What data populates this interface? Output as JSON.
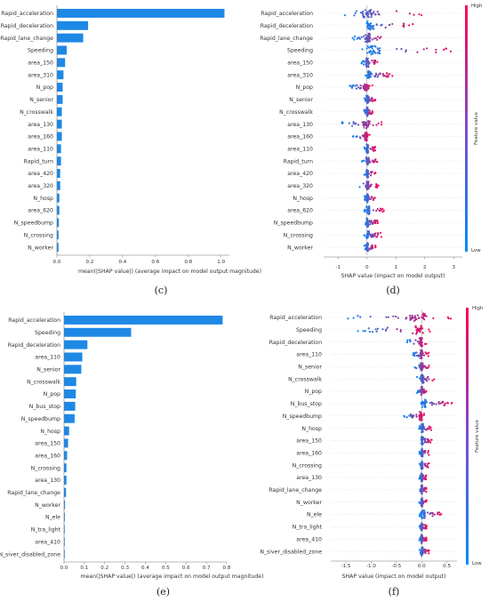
{
  "chart_data": [
    {
      "id": "c",
      "type": "bar",
      "panel_label": "(c)",
      "orientation": "horizontal",
      "categories": [
        "Rapid_acceleration",
        "Rapid_deceleration",
        "Rapid_lane_change",
        "Speeding",
        "area_150",
        "area_310",
        "N_pop",
        "N_senior",
        "N_crosswalk",
        "area_130",
        "area_160",
        "area_110",
        "Rapid_turn",
        "area_420",
        "area_320",
        "N_hosp",
        "area_620",
        "N_speedbump",
        "N_crossing",
        "N_worker"
      ],
      "values": [
        1.02,
        0.19,
        0.16,
        0.06,
        0.05,
        0.04,
        0.035,
        0.035,
        0.03,
        0.03,
        0.03,
        0.025,
        0.025,
        0.02,
        0.02,
        0.015,
        0.015,
        0.012,
        0.01,
        0.01
      ],
      "xlim": [
        0,
        1.05
      ],
      "xticks": [
        "0.0",
        "0.2",
        "0.4",
        "0.6",
        "0.8",
        "1.0"
      ],
      "xlabel": "mean(|SHAP value|) (average impact on model output magnitude)",
      "color": "#1e88e5"
    },
    {
      "id": "d",
      "type": "scatter",
      "panel_label": "(d)",
      "features": [
        "Rapid_acceleration",
        "Rapid_deceleration",
        "Rapid_lane_change",
        "Speeding",
        "area_150",
        "area_310",
        "N_pop",
        "N_senior",
        "N_crosswalk",
        "area_130",
        "area_160",
        "area_110",
        "Rapid_turn",
        "area_420",
        "area_320",
        "N_hosp",
        "area_620",
        "N_speedbump",
        "N_crossing",
        "N_worker"
      ],
      "spread": [
        [
          -1.0,
          2.0
        ],
        [
          -0.1,
          1.6
        ],
        [
          -0.5,
          0.8
        ],
        [
          -0.2,
          3.0
        ],
        [
          -0.2,
          0.4
        ],
        [
          -0.1,
          0.9
        ],
        [
          -0.6,
          0.2
        ],
        [
          -0.1,
          0.3
        ],
        [
          -0.1,
          0.2
        ],
        [
          -1.0,
          0.7
        ],
        [
          -0.5,
          0.1
        ],
        [
          -0.1,
          0.3
        ],
        [
          -0.2,
          0.4
        ],
        [
          -0.1,
          0.3
        ],
        [
          -0.3,
          0.4
        ],
        [
          -0.1,
          0.3
        ],
        [
          -0.1,
          0.6
        ],
        [
          -0.1,
          0.4
        ],
        [
          -0.1,
          0.5
        ],
        [
          -0.1,
          0.3
        ]
      ],
      "xlim": [
        -1.5,
        3.3
      ],
      "xticks": [
        "-1",
        "0",
        "1",
        "2",
        "3"
      ],
      "xlabel": "SHAP value (impact on model output)",
      "colorbar": {
        "label": "Feature value",
        "high": "High",
        "low": "Low",
        "low_color": "#008bfb",
        "high_color": "#ff0052"
      }
    },
    {
      "id": "e",
      "type": "bar",
      "panel_label": "(e)",
      "orientation": "horizontal",
      "categories": [
        "Rapid_acceleration",
        "Speeding",
        "Rapid_deceleration",
        "area_110",
        "N_senior",
        "N_crosswalk",
        "N_pop",
        "N_bus_stop",
        "N_speedbump",
        "N_hosp",
        "area_150",
        "area_160",
        "N_crossing",
        "area_130",
        "Rapid_lane_change",
        "N_worker",
        "N_ele",
        "N_tra_light",
        "area_410",
        "N_siver_disabled_zone"
      ],
      "values": [
        0.78,
        0.33,
        0.115,
        0.09,
        0.085,
        0.06,
        0.058,
        0.055,
        0.052,
        0.025,
        0.02,
        0.015,
        0.012,
        0.012,
        0.01,
        0.005,
        0.004,
        0.003,
        0.002,
        0.002
      ],
      "xlim": [
        0,
        0.8
      ],
      "xticks": [
        "0.0",
        "0.1",
        "0.2",
        "0.3",
        "0.4",
        "0.5",
        "0.6",
        "0.7",
        "0.8"
      ],
      "xlabel": "mean(|SHAP value|) (average impact on model output magnitude)",
      "color": "#1e88e5"
    },
    {
      "id": "f",
      "type": "scatter",
      "panel_label": "(f)",
      "features": [
        "Rapid_acceleration",
        "Speeding",
        "Rapid_deceleration",
        "area_110",
        "N_senior",
        "N_crosswalk",
        "N_pop",
        "N_bus_stop",
        "N_speedbump",
        "N_hosp",
        "area_150",
        "area_160",
        "N_crossing",
        "area_130",
        "Rapid_lane_change",
        "N_worker",
        "N_ele",
        "N_tra_light",
        "area_410",
        "N_siver_disabled_zone"
      ],
      "spread": [
        [
          -1.6,
          0.6
        ],
        [
          -1.3,
          0.2
        ],
        [
          -0.3,
          0.1
        ],
        [
          -0.2,
          0.15
        ],
        [
          -0.15,
          0.15
        ],
        [
          -0.1,
          0.25
        ],
        [
          -0.1,
          0.1
        ],
        [
          -0.05,
          0.6
        ],
        [
          -0.35,
          0.05
        ],
        [
          -0.05,
          0.2
        ],
        [
          -0.05,
          0.2
        ],
        [
          -0.05,
          0.15
        ],
        [
          -0.05,
          0.15
        ],
        [
          -0.05,
          0.1
        ],
        [
          -0.05,
          0.1
        ],
        [
          -0.05,
          0.1
        ],
        [
          -0.05,
          0.4
        ],
        [
          -0.05,
          0.1
        ],
        [
          -0.05,
          0.1
        ],
        [
          -0.05,
          0.15
        ]
      ],
      "xlim": [
        -1.8,
        0.7
      ],
      "xticks": [
        "-1.5",
        "-1.0",
        "-0.5",
        "0.0",
        "0.5"
      ],
      "xlabel": "SHAP value (impact on model output)",
      "colorbar": {
        "label": "Feature value",
        "high": "High",
        "low": "Low",
        "low_color": "#008bfb",
        "high_color": "#ff0052"
      }
    }
  ]
}
